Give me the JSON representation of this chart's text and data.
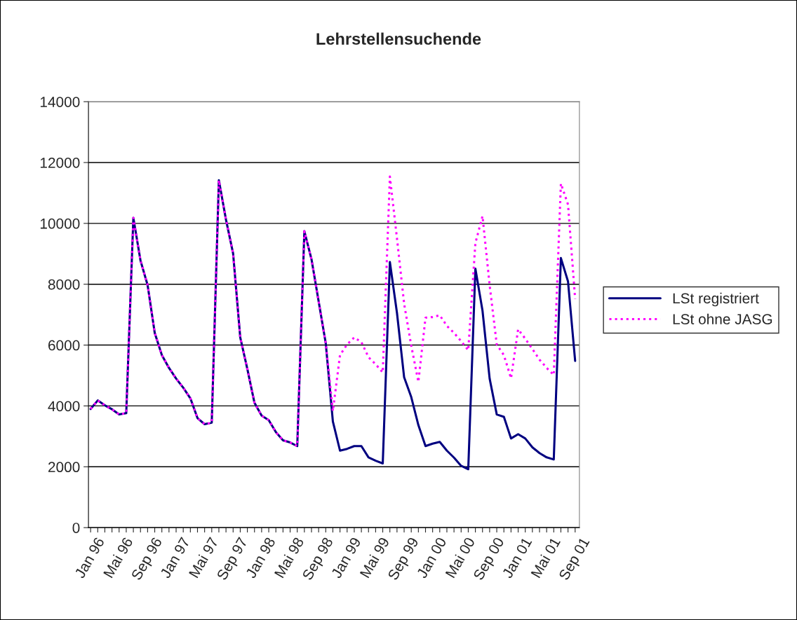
{
  "chart_data": {
    "type": "line",
    "title": "Lehrstellensuchende",
    "categories": [
      "Jan 96",
      null,
      null,
      null,
      "Mai 96",
      null,
      null,
      null,
      "Sep 96",
      null,
      null,
      null,
      "Jan 97",
      null,
      null,
      null,
      "Mai 97",
      null,
      null,
      null,
      "Sep 97",
      null,
      null,
      null,
      "Jan 98",
      null,
      null,
      null,
      "Mai 98",
      null,
      null,
      null,
      "Sep 98",
      null,
      null,
      null,
      "Jan 99",
      null,
      null,
      null,
      "Mai 99",
      null,
      null,
      null,
      "Sep 99",
      null,
      null,
      null,
      "Jan 00",
      null,
      null,
      null,
      "Mai 00",
      null,
      null,
      null,
      "Sep 00",
      null,
      null,
      null,
      "Jan 01",
      null,
      null,
      null,
      "Mai 01",
      null,
      null,
      null,
      "Sep 01"
    ],
    "series": [
      {
        "name": "LSt registriert",
        "color": "#000080",
        "line_style": "solid",
        "values": [
          3900,
          4180,
          4020,
          3890,
          3720,
          3760,
          10180,
          8780,
          7970,
          6400,
          5670,
          5250,
          4900,
          4600,
          4250,
          3600,
          3400,
          3450,
          11420,
          10120,
          9010,
          6250,
          5210,
          4100,
          3680,
          3530,
          3140,
          2870,
          2800,
          2680,
          9740,
          8820,
          7440,
          6060,
          3490,
          2530,
          2590,
          2680,
          2680,
          2310,
          2200,
          2110,
          8730,
          7050,
          4940,
          4290,
          3370,
          2680,
          2760,
          2820,
          2530,
          2300,
          2030,
          1920,
          8510,
          7130,
          4900,
          3720,
          3640,
          2930,
          3070,
          2930,
          2640,
          2450,
          2310,
          2240,
          8860,
          8090,
          5480
        ]
      },
      {
        "name": "LSt ohne JASG",
        "color": "#ff00ff",
        "line_style": "dotted",
        "values": [
          3900,
          4180,
          4020,
          3890,
          3720,
          3760,
          10180,
          8780,
          7970,
          6400,
          5670,
          5250,
          4900,
          4600,
          4250,
          3600,
          3400,
          3450,
          11420,
          10120,
          9010,
          6250,
          5210,
          4100,
          3680,
          3530,
          3140,
          2870,
          2800,
          2680,
          9740,
          8820,
          7440,
          6060,
          3830,
          5670,
          6020,
          6250,
          6100,
          5600,
          5370,
          5100,
          11540,
          9500,
          7360,
          5980,
          4790,
          6900,
          6920,
          6980,
          6630,
          6400,
          6130,
          5830,
          9350,
          10240,
          7970,
          6020,
          5670,
          4910,
          6520,
          6210,
          5870,
          5520,
          5250,
          5020,
          11310,
          10620,
          7520
        ]
      }
    ],
    "ylim": [
      0,
      14000
    ],
    "yticks": [
      0,
      2000,
      4000,
      6000,
      8000,
      10000,
      12000,
      14000
    ],
    "grid": "y",
    "legend": "right"
  }
}
